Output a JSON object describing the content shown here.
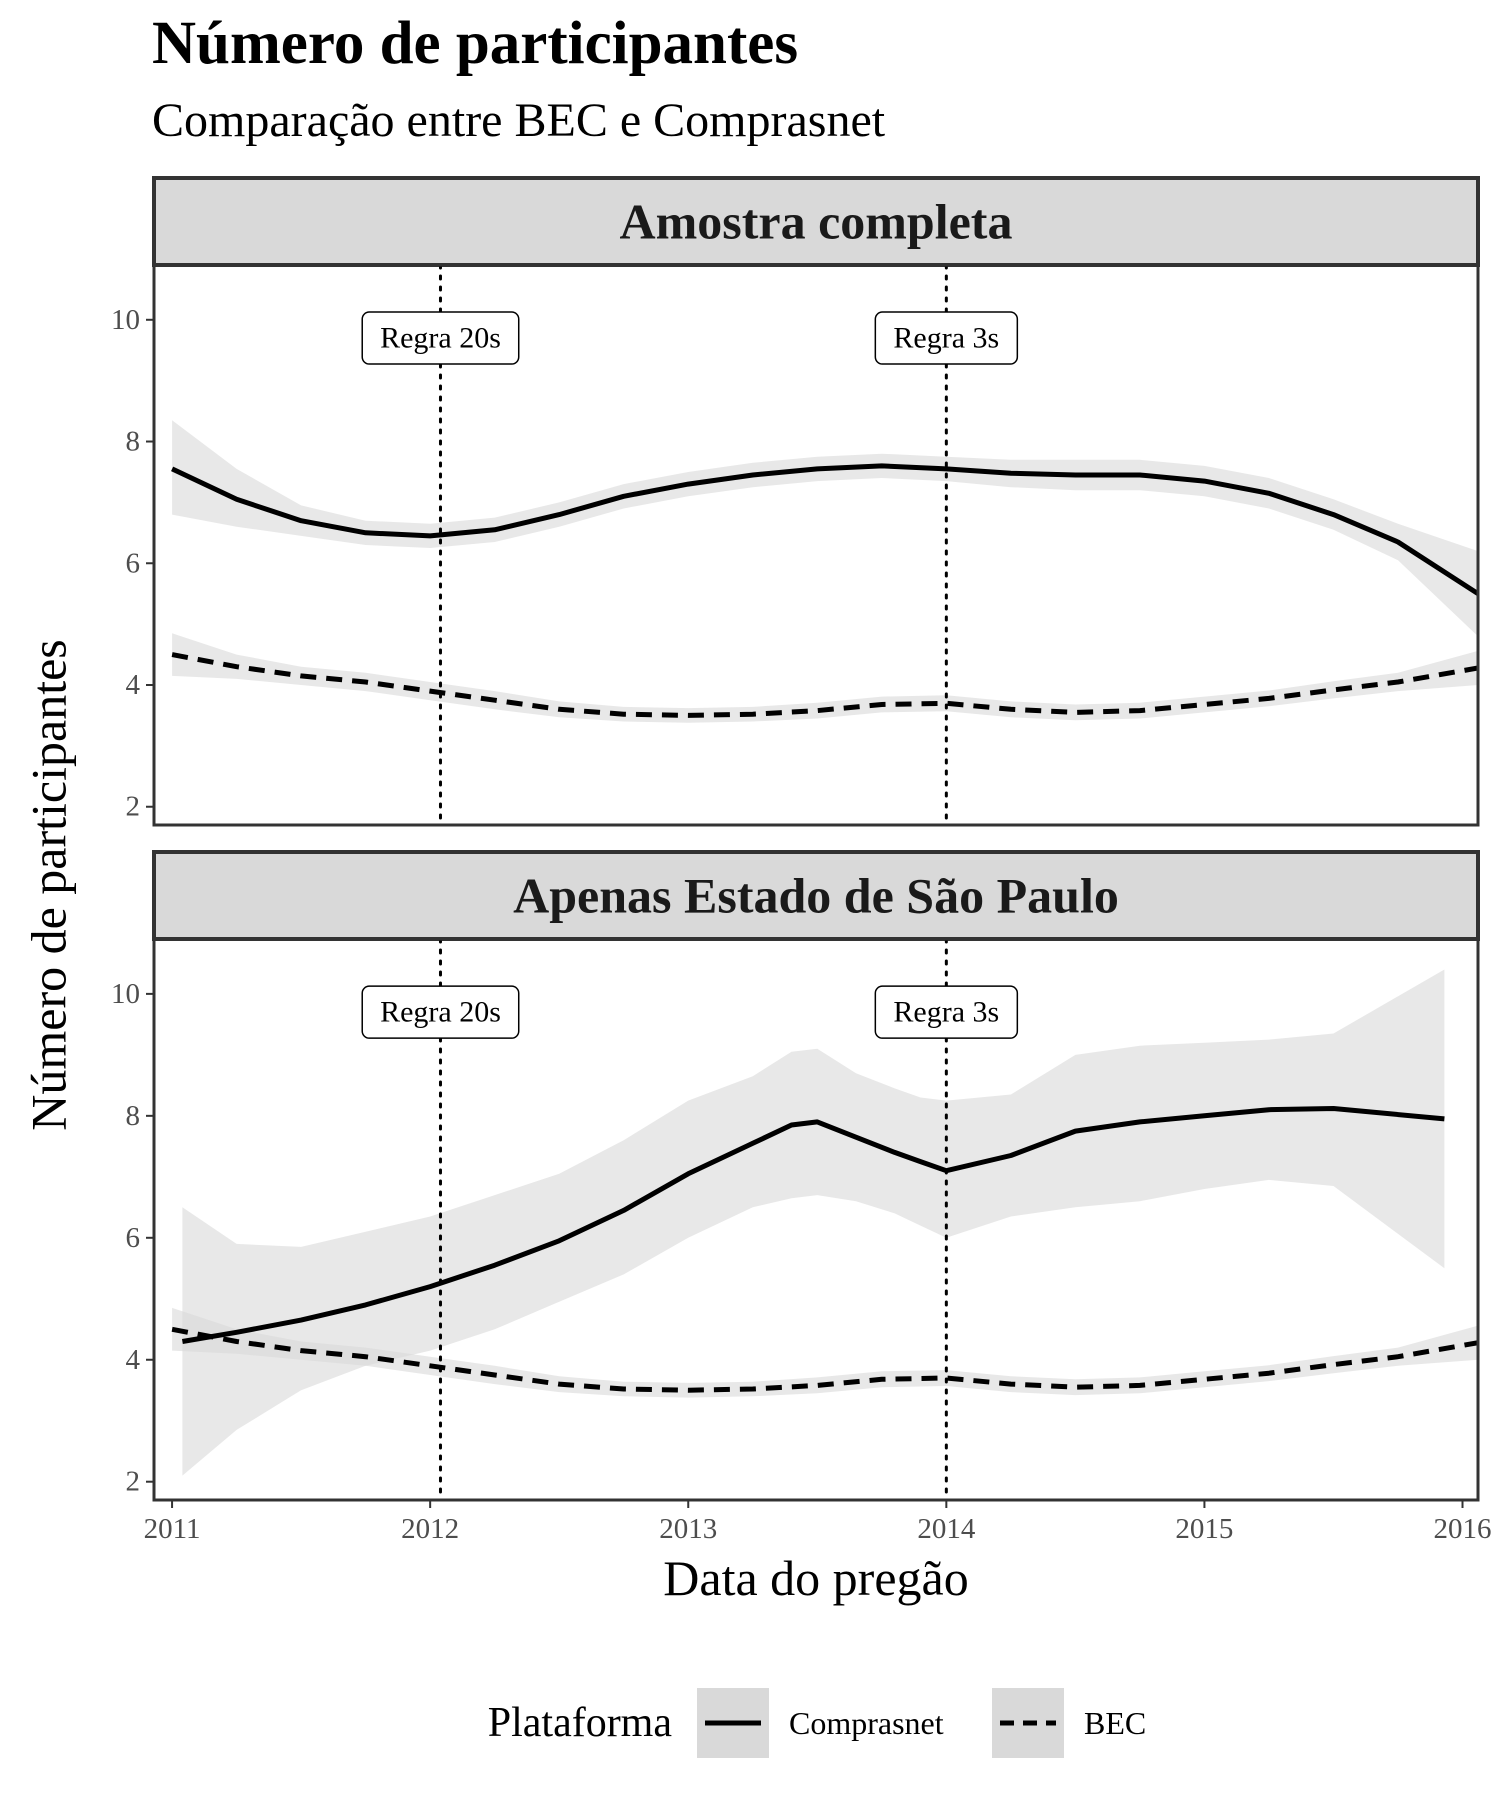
{
  "chart_data": {
    "type": "line",
    "title": "Número de participantes",
    "subtitle": "Comparação entre BEC e Comprasnet",
    "xlabel": "Data do pregão",
    "ylabel": "Número de participantes",
    "xlim": [
      2010.93,
      2016.06
    ],
    "ylim": [
      1.7,
      10.9
    ],
    "x_ticks": [
      2011,
      2012,
      2013,
      2014,
      2015,
      2016
    ],
    "x_tick_labels": [
      "2011",
      "2012",
      "2013",
      "2014",
      "2015",
      "2016"
    ],
    "y_ticks": [
      2,
      4,
      6,
      8,
      10
    ],
    "y_tick_labels": [
      "2",
      "4",
      "6",
      "8",
      "10"
    ],
    "grid": false,
    "legend": {
      "title": "Plataforma",
      "position": "bottom",
      "entries": [
        {
          "label": "Comprasnet",
          "linetype": "solid"
        },
        {
          "label": "BEC",
          "linetype": "dashed"
        }
      ]
    },
    "colors": {
      "line": "#000000",
      "ribbon": "#d9d9d9",
      "strip": "#d9d9d9",
      "border": "#333333"
    },
    "vlines": [
      {
        "x": 2012.04,
        "label": "Regra 20s",
        "label_y": 9.7
      },
      {
        "x": 2014.0,
        "label": "Regra 3s",
        "label_y": 9.7
      }
    ],
    "panels": [
      {
        "strip": "Amostra completa",
        "series": [
          {
            "name": "Comprasnet",
            "linetype": "solid",
            "x": [
              2011.0,
              2011.25,
              2011.5,
              2011.75,
              2012.0,
              2012.25,
              2012.5,
              2012.75,
              2013.0,
              2013.25,
              2013.5,
              2013.75,
              2014.0,
              2014.25,
              2014.5,
              2014.75,
              2015.0,
              2015.25,
              2015.5,
              2015.75,
              2016.06
            ],
            "y": [
              7.55,
              7.05,
              6.7,
              6.5,
              6.45,
              6.55,
              6.8,
              7.1,
              7.3,
              7.45,
              7.55,
              7.6,
              7.55,
              7.48,
              7.45,
              7.45,
              7.35,
              7.15,
              6.8,
              6.35,
              5.5
            ],
            "lower": [
              6.8,
              6.6,
              6.45,
              6.3,
              6.25,
              6.35,
              6.6,
              6.9,
              7.1,
              7.25,
              7.35,
              7.4,
              7.35,
              7.25,
              7.2,
              7.2,
              7.1,
              6.9,
              6.55,
              6.05,
              4.8
            ],
            "upper": [
              8.35,
              7.55,
              6.95,
              6.7,
              6.65,
              6.75,
              7.0,
              7.3,
              7.5,
              7.65,
              7.75,
              7.8,
              7.75,
              7.7,
              7.7,
              7.7,
              7.6,
              7.4,
              7.05,
              6.65,
              6.2
            ]
          },
          {
            "name": "BEC",
            "linetype": "dashed",
            "x": [
              2011.0,
              2011.25,
              2011.5,
              2011.75,
              2012.0,
              2012.25,
              2012.5,
              2012.75,
              2013.0,
              2013.25,
              2013.5,
              2013.75,
              2014.0,
              2014.25,
              2014.5,
              2014.75,
              2015.0,
              2015.25,
              2015.5,
              2015.75,
              2016.06
            ],
            "y": [
              4.5,
              4.3,
              4.15,
              4.05,
              3.9,
              3.75,
              3.6,
              3.52,
              3.5,
              3.52,
              3.58,
              3.68,
              3.7,
              3.6,
              3.55,
              3.58,
              3.68,
              3.78,
              3.92,
              4.05,
              4.28
            ],
            "lower": [
              4.15,
              4.1,
              4.0,
              3.9,
              3.75,
              3.6,
              3.47,
              3.4,
              3.38,
              3.4,
              3.45,
              3.55,
              3.57,
              3.47,
              3.42,
              3.45,
              3.55,
              3.65,
              3.78,
              3.9,
              4.0
            ],
            "upper": [
              4.85,
              4.5,
              4.3,
              4.2,
              4.05,
              3.9,
              3.73,
              3.64,
              3.62,
              3.64,
              3.71,
              3.81,
              3.83,
              3.73,
              3.68,
              3.71,
              3.81,
              3.91,
              4.06,
              4.2,
              4.56
            ]
          }
        ]
      },
      {
        "strip": "Apenas Estado de São Paulo",
        "series": [
          {
            "name": "Comprasnet",
            "linetype": "solid",
            "x": [
              2011.04,
              2011.25,
              2011.5,
              2011.75,
              2012.0,
              2012.25,
              2012.5,
              2012.75,
              2013.0,
              2013.25,
              2013.4,
              2013.5,
              2013.65,
              2013.8,
              2013.9,
              2014.0,
              2014.25,
              2014.5,
              2014.75,
              2015.0,
              2015.25,
              2015.5,
              2015.93
            ],
            "y": [
              4.3,
              4.45,
              4.65,
              4.9,
              5.2,
              5.55,
              5.95,
              6.45,
              7.05,
              7.55,
              7.85,
              7.9,
              7.65,
              7.4,
              7.25,
              7.1,
              7.35,
              7.75,
              7.9,
              8.0,
              8.1,
              8.12,
              7.95
            ],
            "lower": [
              2.1,
              2.85,
              3.5,
              3.9,
              4.15,
              4.5,
              4.95,
              5.4,
              6.0,
              6.5,
              6.65,
              6.7,
              6.6,
              6.4,
              6.2,
              6.0,
              6.35,
              6.5,
              6.6,
              6.8,
              6.95,
              6.85,
              5.5
            ],
            "upper": [
              6.5,
              5.9,
              5.85,
              6.1,
              6.35,
              6.7,
              7.05,
              7.6,
              8.25,
              8.65,
              9.05,
              9.1,
              8.7,
              8.45,
              8.3,
              8.25,
              8.35,
              9.0,
              9.15,
              9.2,
              9.25,
              9.35,
              10.4
            ]
          },
          {
            "name": "BEC",
            "linetype": "dashed",
            "x": [
              2011.0,
              2011.25,
              2011.5,
              2011.75,
              2012.0,
              2012.25,
              2012.5,
              2012.75,
              2013.0,
              2013.25,
              2013.5,
              2013.75,
              2014.0,
              2014.25,
              2014.5,
              2014.75,
              2015.0,
              2015.25,
              2015.5,
              2015.75,
              2016.06
            ],
            "y": [
              4.5,
              4.3,
              4.15,
              4.05,
              3.9,
              3.75,
              3.6,
              3.52,
              3.5,
              3.52,
              3.58,
              3.68,
              3.7,
              3.6,
              3.55,
              3.58,
              3.68,
              3.78,
              3.92,
              4.05,
              4.28
            ],
            "lower": [
              4.15,
              4.1,
              4.0,
              3.9,
              3.75,
              3.6,
              3.47,
              3.4,
              3.38,
              3.4,
              3.45,
              3.55,
              3.57,
              3.47,
              3.42,
              3.45,
              3.55,
              3.65,
              3.78,
              3.9,
              4.0
            ],
            "upper": [
              4.85,
              4.5,
              4.3,
              4.2,
              4.05,
              3.9,
              3.73,
              3.64,
              3.62,
              3.64,
              3.71,
              3.81,
              3.83,
              3.73,
              3.68,
              3.71,
              3.81,
              3.91,
              4.06,
              4.2,
              4.56
            ]
          }
        ]
      }
    ]
  }
}
